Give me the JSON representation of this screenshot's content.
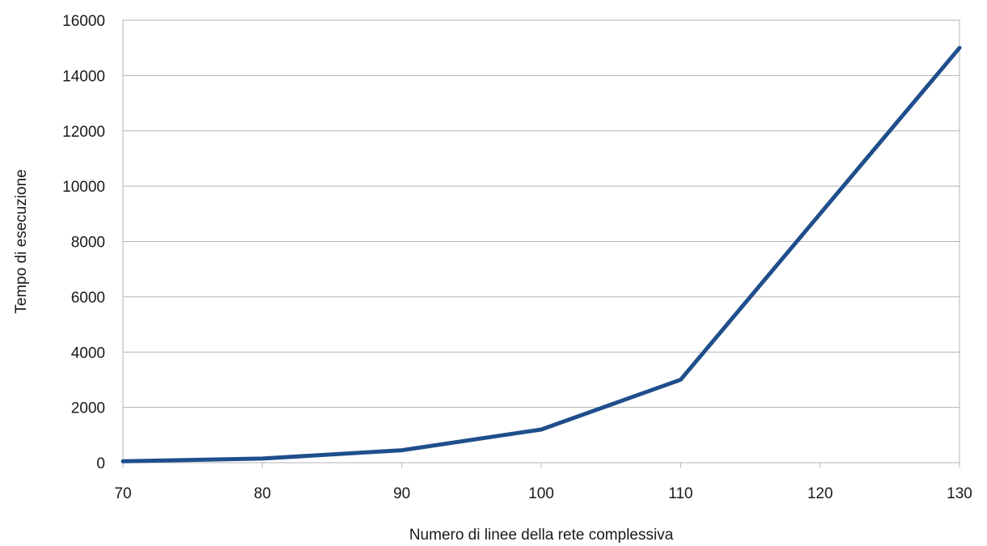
{
  "chart_data": {
    "type": "line",
    "title": "",
    "xlabel": "Numero di linee della rete complessiva",
    "ylabel": "Tempo di esecuzione",
    "x": [
      70,
      80,
      90,
      100,
      110,
      120,
      130
    ],
    "series": [
      {
        "values": [
          50,
          150,
          450,
          1200,
          3000,
          9000,
          15000
        ],
        "color": "#1f4e8c"
      }
    ],
    "xlim": [
      70,
      130
    ],
    "ylim": [
      0,
      16000
    ],
    "xticks": [
      "70",
      "80",
      "90",
      "100",
      "110",
      "120",
      "130"
    ],
    "yticks": [
      "0",
      "2000",
      "4000",
      "6000",
      "8000",
      "10000",
      "12000",
      "14000",
      "16000"
    ],
    "grid": "horizontal",
    "legend": "none"
  }
}
